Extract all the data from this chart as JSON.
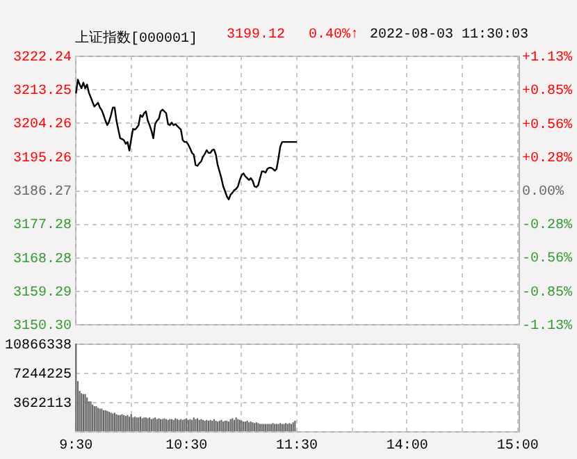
{
  "chart_data": [
    {
      "type": "line",
      "title": "上证指数[000001]",
      "annotations": [
        "3199.12",
        "0.40%↑",
        "2022-08-03 11:30:03"
      ],
      "categories": [
        null,
        null,
        null,
        null,
        null,
        null,
        null,
        null,
        null,
        null,
        null,
        null,
        null,
        null,
        null,
        null,
        null,
        null,
        null,
        null,
        null,
        null,
        null,
        null,
        null,
        null,
        null,
        null,
        null,
        null,
        null,
        null,
        null,
        null,
        null,
        null,
        null,
        null,
        null,
        null,
        null,
        null,
        null,
        null,
        null,
        null,
        null,
        null,
        null,
        null,
        null,
        null,
        null,
        null,
        null,
        null,
        null,
        null,
        null,
        null,
        null,
        null,
        null,
        null,
        null,
        null,
        null,
        null,
        null,
        null,
        null,
        null,
        null,
        null,
        null,
        null,
        null,
        null,
        null,
        null,
        null,
        null,
        null,
        null,
        null,
        null,
        null,
        null,
        null,
        null,
        null,
        null,
        null,
        null,
        null,
        null,
        null,
        null,
        null,
        null,
        null,
        null,
        null,
        null,
        null,
        null,
        null,
        null,
        null,
        null,
        null,
        null,
        null,
        null,
        null,
        null,
        null,
        null,
        null,
        null,
        null,
        null,
        null,
        null,
        null,
        null,
        null,
        null,
        null,
        null,
        null,
        null,
        null,
        null,
        null,
        null,
        null,
        null,
        null,
        null,
        null,
        null,
        null,
        null,
        null,
        null,
        null,
        null,
        null,
        null,
        null,
        null,
        null,
        null,
        null,
        null,
        null,
        null,
        null,
        null,
        null,
        null,
        null,
        null,
        null,
        null,
        null,
        null,
        null,
        null,
        null,
        null,
        null,
        null,
        null,
        null,
        null,
        null,
        null,
        null,
        null,
        null,
        null,
        null,
        null,
        null,
        null,
        null,
        null,
        null,
        null,
        null,
        null,
        null,
        null,
        null,
        null,
        null,
        null,
        null,
        null,
        null,
        null,
        null,
        null,
        null,
        null,
        null,
        null,
        null,
        null,
        null,
        null,
        null,
        null,
        null,
        null,
        null,
        null,
        null,
        null,
        null,
        null,
        null,
        null,
        null,
        null,
        null,
        null,
        null,
        null,
        null,
        null,
        null,
        null,
        null,
        null,
        null,
        null,
        null,
        null
      ],
      "series": [
        {
          "color": "#000000",
          "values": [
            3212.1,
            3215.8,
            3214.5,
            3213.5,
            3215.0,
            3213.5,
            3214.5,
            3212.3,
            3211.1,
            3209.8,
            3208.6,
            3209.1,
            3209.6,
            3208.3,
            3207.6,
            3206.3,
            3204.8,
            3203.6,
            3204.6,
            3206.3,
            3208.3,
            3208.3,
            3204.8,
            3202.4,
            3200.1,
            3199.9,
            3199.6,
            3198.6,
            3199.1,
            3196.8,
            3199.9,
            3202.6,
            3202.4,
            3202.9,
            3203.6,
            3206.3,
            3205.8,
            3206.8,
            3207.3,
            3204.8,
            3203.6,
            3202.1,
            3200.1,
            3203.9,
            3204.8,
            3205.3,
            3207.3,
            3207.8,
            3207.3,
            3206.8,
            3203.9,
            3203.6,
            3204.3,
            3203.6,
            3203.9,
            3203.4,
            3202.9,
            3202.4,
            3199.6,
            3199.1,
            3199.1,
            3198.4,
            3197.4,
            3196.2,
            3195.7,
            3192.9,
            3192.7,
            3193.4,
            3193.9,
            3195.2,
            3195.9,
            3196.9,
            3196.2,
            3196.2,
            3196.9,
            3197.1,
            3195.7,
            3192.9,
            3191.2,
            3189.4,
            3187.2,
            3185.9,
            3184.5,
            3183.7,
            3185.0,
            3185.5,
            3186.2,
            3186.5,
            3187.2,
            3188.9,
            3190.2,
            3190.7,
            3189.9,
            3189.4,
            3188.9,
            3189.4,
            3188.7,
            3187.2,
            3187.0,
            3187.5,
            3189.4,
            3191.2,
            3191.2,
            3190.9,
            3191.9,
            3192.2,
            3192.2,
            3191.9,
            3191.4,
            3191.9,
            3194.7,
            3197.9,
            3199.1,
            3199.1,
            3199.1,
            3199.1,
            3199.1,
            3199.1,
            3199.1,
            3199.1,
            3199.1,
            null,
            null,
            null,
            null,
            null,
            null,
            null,
            null,
            null,
            null,
            null,
            null,
            null,
            null,
            null,
            null,
            null,
            null,
            null,
            null,
            null,
            null,
            null,
            null,
            null,
            null,
            null,
            null,
            null,
            null,
            null,
            null,
            null,
            null,
            null,
            null,
            null,
            null,
            null,
            null,
            null,
            null,
            null,
            null,
            null,
            null,
            null,
            null,
            null,
            null,
            null,
            null,
            null,
            null,
            null,
            null,
            null,
            null,
            null,
            null,
            null,
            null,
            null,
            null,
            null,
            null,
            null,
            null,
            null,
            null,
            null,
            null,
            null,
            null,
            null,
            null,
            null,
            null,
            null,
            null,
            null,
            null,
            null,
            null,
            null,
            null,
            null,
            null,
            null,
            null,
            null,
            null,
            null,
            null,
            null,
            null,
            null,
            null,
            null,
            null,
            null,
            null,
            null,
            null,
            null,
            null,
            null,
            null,
            null,
            null,
            null,
            null,
            null,
            null,
            null,
            null,
            null,
            null,
            null,
            null
          ]
        }
      ],
      "ylim": [
        3150.3,
        3222.24
      ],
      "yticks": [
        {
          "value": 3150.3,
          "label": "3150.30"
        },
        3159.29,
        3168.28,
        3177.28,
        3186.27,
        3195.26,
        3204.26,
        3213.25,
        3222.24
      ],
      "y2lim": [
        -1.13,
        1.13
      ],
      "y2ticks": [
        {
          "value": -1.13,
          "label": "-1.13%"
        },
        {
          "value": -0.85,
          "label": "-0.85%"
        },
        {
          "value": -0.56,
          "label": "-0.56%"
        },
        {
          "value": -0.28,
          "label": "-0.28%"
        },
        {
          "value": 0,
          "label": "0.00%"
        },
        {
          "value": 0.28,
          "label": "+0.28%"
        },
        {
          "value": 0.56,
          "label": "+0.56%"
        },
        {
          "value": 0.85,
          "label": "+0.85%"
        },
        {
          "value": 1.13,
          "label": "+1.13%"
        }
      ],
      "grid": true,
      "tick_labels": "y"
    },
    {
      "type": "bar",
      "categories": [
        "9:30",
        null,
        null,
        null,
        null,
        null,
        null,
        null,
        null,
        null,
        null,
        null,
        null,
        null,
        null,
        null,
        null,
        null,
        null,
        null,
        null,
        null,
        null,
        null,
        null,
        null,
        null,
        null,
        null,
        null,
        null,
        null,
        null,
        null,
        null,
        null,
        null,
        null,
        null,
        null,
        null,
        null,
        null,
        null,
        null,
        null,
        null,
        null,
        null,
        null,
        null,
        null,
        null,
        null,
        null,
        null,
        null,
        null,
        null,
        null,
        "10:30",
        null,
        null,
        null,
        null,
        null,
        null,
        null,
        null,
        null,
        null,
        null,
        null,
        null,
        null,
        null,
        null,
        null,
        null,
        null,
        null,
        null,
        null,
        null,
        null,
        null,
        null,
        null,
        null,
        null,
        null,
        null,
        null,
        null,
        null,
        null,
        null,
        null,
        null,
        null,
        null,
        null,
        null,
        null,
        null,
        null,
        null,
        null,
        null,
        null,
        null,
        null,
        null,
        null,
        null,
        null,
        null,
        null,
        null,
        null,
        "11:30",
        null,
        null,
        null,
        null,
        null,
        null,
        null,
        null,
        null,
        null,
        null,
        null,
        null,
        null,
        null,
        null,
        null,
        null,
        null,
        null,
        null,
        null,
        null,
        null,
        null,
        null,
        null,
        null,
        null,
        null,
        null,
        null,
        null,
        null,
        null,
        null,
        null,
        null,
        null,
        null,
        null,
        null,
        null,
        null,
        null,
        null,
        null,
        null,
        null,
        null,
        null,
        null,
        null,
        null,
        null,
        null,
        null,
        null,
        null,
        "14:00",
        null,
        null,
        null,
        null,
        null,
        null,
        null,
        null,
        null,
        null,
        null,
        null,
        null,
        null,
        null,
        null,
        null,
        null,
        null,
        null,
        null,
        null,
        null,
        null,
        null,
        null,
        null,
        null,
        null,
        null,
        null,
        null,
        null,
        null,
        null,
        null,
        null,
        null,
        null,
        null,
        null,
        null,
        null,
        null,
        null,
        null,
        null,
        null,
        null,
        null,
        null,
        null,
        null,
        null,
        null,
        null,
        null,
        null,
        null,
        "15:00"
      ],
      "series": [
        {
          "color": "#666666",
          "values": [
            10866338,
            6200000,
            5000000,
            4700000,
            4600000,
            4600000,
            4200000,
            3700000,
            3700000,
            3300000,
            3100000,
            3100000,
            2900000,
            2800000,
            2800000,
            2600000,
            2600000,
            2500000,
            2400000,
            2300000,
            2200000,
            2300000,
            2100000,
            2000000,
            2000000,
            2100000,
            2000000,
            1900000,
            2000000,
            1800000,
            2100000,
            1700000,
            1800000,
            1700000,
            1700000,
            1800000,
            1600000,
            1700000,
            1700000,
            1600000,
            1700000,
            1500000,
            1600000,
            1700000,
            1500000,
            1600000,
            1500000,
            1500000,
            1600000,
            1500000,
            1400000,
            1500000,
            1500000,
            1400000,
            1600000,
            1500000,
            1400000,
            1500000,
            1400000,
            1500000,
            1600000,
            1400000,
            1500000,
            1400000,
            1700000,
            1500000,
            1600000,
            1400000,
            1500000,
            1400000,
            1300000,
            1400000,
            1300000,
            1400000,
            1300000,
            1500000,
            1300000,
            1200000,
            1300000,
            1400000,
            1200000,
            1300000,
            1300000,
            1200000,
            1500000,
            1600000,
            1400000,
            1700000,
            1500000,
            1400000,
            1300000,
            1200000,
            1200000,
            1300000,
            1100000,
            1200000,
            1100000,
            1000000,
            1100000,
            1000000,
            900000,
            900000,
            900000,
            900000,
            900000,
            900000,
            900000,
            1000000,
            900000,
            900000,
            900000,
            1000000,
            900000,
            900000,
            1000000,
            900000,
            1000000,
            900000,
            1100000,
            1300000,
            null,
            null,
            null,
            null,
            null,
            null,
            null,
            null,
            null,
            null,
            null,
            null,
            null,
            null,
            null,
            null,
            null,
            null,
            null,
            null,
            null,
            null,
            null,
            null,
            null,
            null,
            null,
            null,
            null,
            null,
            null,
            null,
            null,
            null,
            null,
            null,
            null,
            null,
            null,
            null,
            null,
            null,
            null,
            null,
            null,
            null,
            null,
            null,
            null,
            null,
            null,
            null,
            null,
            null,
            null,
            null,
            null,
            null,
            null,
            null,
            null,
            null,
            null,
            null,
            null,
            null,
            null,
            null,
            null,
            null,
            null,
            null,
            null,
            null,
            null,
            null,
            null,
            null,
            null,
            null,
            null,
            null,
            null,
            null,
            null,
            null,
            null,
            null,
            null,
            null,
            null,
            null,
            null,
            null,
            null,
            null,
            null,
            null,
            null,
            null,
            null,
            null,
            null,
            null,
            null,
            null,
            null,
            null,
            null,
            null,
            null,
            null,
            null,
            null,
            null,
            null,
            null,
            null,
            null,
            null,
            null
          ]
        }
      ],
      "ylim": [
        0,
        10866338
      ],
      "yticks": [
        {
          "value": 0,
          "label": null
        },
        3622113,
        7244225,
        10866338
      ],
      "grid": true
    }
  ]
}
